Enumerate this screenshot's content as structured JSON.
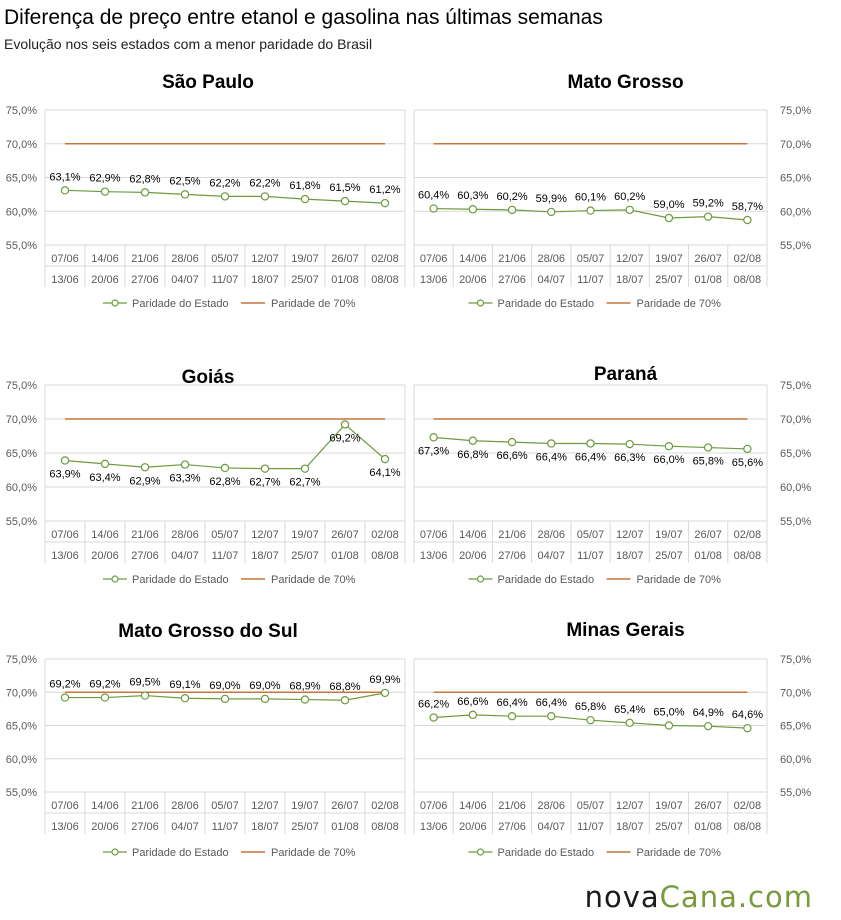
{
  "header": {
    "title": "Diferença de preço entre etanol e gasolina nas últimas semanas",
    "subtitle": "Evolução nos seis estados com a menor paridade do Brasil"
  },
  "brand": {
    "part1": "nova",
    "part2": "Cana",
    "part3": ".com"
  },
  "colors": {
    "series": "#6e9a3e",
    "threshold": "#c8743a",
    "grid": "#d9d9d9",
    "axis_text": "#595959"
  },
  "legend": {
    "series": "Paridade do Estado",
    "threshold": "Paridade de 70%"
  },
  "chart_data": [
    {
      "type": "line",
      "title": "São Paulo",
      "yaxis_side": "left",
      "categories": [
        "07/06 13/06",
        "14/06 20/06",
        "21/06 27/06",
        "28/06 04/07",
        "05/07 11/07",
        "12/07 18/07",
        "19/07 25/07",
        "26/07 01/08",
        "02/08 08/08"
      ],
      "cat_top": [
        "07/06",
        "14/06",
        "21/06",
        "28/06",
        "05/07",
        "12/07",
        "19/07",
        "26/07",
        "02/08"
      ],
      "cat_bottom": [
        "13/06",
        "20/06",
        "27/06",
        "04/07",
        "11/07",
        "18/07",
        "25/07",
        "01/08",
        "08/08"
      ],
      "series": [
        {
          "name": "Paridade do Estado",
          "values": [
            63.1,
            62.9,
            62.8,
            62.5,
            62.2,
            62.2,
            61.8,
            61.5,
            61.2
          ],
          "labels": [
            "63,1%",
            "62,9%",
            "62,8%",
            "62,5%",
            "62,2%",
            "62,2%",
            "61,8%",
            "61,5%",
            "61,2%"
          ]
        },
        {
          "name": "Paridade de 70%",
          "values": [
            70,
            70,
            70,
            70,
            70,
            70,
            70,
            70,
            70
          ]
        }
      ],
      "ylim": [
        55,
        75
      ],
      "yticks": [
        "55,0%",
        "60,0%",
        "65,0%",
        "70,0%",
        "75,0%"
      ],
      "label_pos": "above"
    },
    {
      "type": "line",
      "title": "Mato Grosso",
      "yaxis_side": "right",
      "cat_top": [
        "07/06",
        "14/06",
        "21/06",
        "28/06",
        "05/07",
        "12/07",
        "19/07",
        "26/07",
        "02/08"
      ],
      "cat_bottom": [
        "13/06",
        "20/06",
        "27/06",
        "04/07",
        "11/07",
        "18/07",
        "25/07",
        "01/08",
        "08/08"
      ],
      "series": [
        {
          "name": "Paridade do Estado",
          "values": [
            60.4,
            60.3,
            60.2,
            59.9,
            60.1,
            60.2,
            59.0,
            59.2,
            58.7
          ],
          "labels": [
            "60,4%",
            "60,3%",
            "60,2%",
            "59,9%",
            "60,1%",
            "60,2%",
            "59,0%",
            "59,2%",
            "58,7%"
          ]
        },
        {
          "name": "Paridade de 70%",
          "values": [
            70,
            70,
            70,
            70,
            70,
            70,
            70,
            70,
            70
          ]
        }
      ],
      "ylim": [
        55,
        75
      ],
      "yticks": [
        "55,0%",
        "60,0%",
        "65,0%",
        "70,0%",
        "75,0%"
      ],
      "label_pos": "above"
    },
    {
      "type": "line",
      "title": "Goiás",
      "yaxis_side": "left",
      "cat_top": [
        "07/06",
        "14/06",
        "21/06",
        "28/06",
        "05/07",
        "12/07",
        "19/07",
        "26/07",
        "02/08"
      ],
      "cat_bottom": [
        "13/06",
        "20/06",
        "27/06",
        "04/07",
        "11/07",
        "18/07",
        "25/07",
        "01/08",
        "08/08"
      ],
      "series": [
        {
          "name": "Paridade do Estado",
          "values": [
            63.9,
            63.4,
            62.9,
            63.3,
            62.8,
            62.7,
            62.7,
            69.2,
            64.1
          ],
          "labels": [
            "63,9%",
            "63,4%",
            "62,9%",
            "63,3%",
            "62,8%",
            "62,7%",
            "62,7%",
            "69,2%",
            "64,1%"
          ]
        },
        {
          "name": "Paridade de 70%",
          "values": [
            70,
            70,
            70,
            70,
            70,
            70,
            70,
            70,
            70
          ]
        }
      ],
      "ylim": [
        55,
        75
      ],
      "yticks": [
        "55,0%",
        "60,0%",
        "65,0%",
        "70,0%",
        "75,0%"
      ],
      "label_pos": "below"
    },
    {
      "type": "line",
      "title": "Paraná",
      "yaxis_side": "right",
      "cat_top": [
        "07/06",
        "14/06",
        "21/06",
        "28/06",
        "05/07",
        "12/07",
        "19/07",
        "26/07",
        "02/08"
      ],
      "cat_bottom": [
        "13/06",
        "20/06",
        "27/06",
        "04/07",
        "11/07",
        "18/07",
        "25/07",
        "01/08",
        "08/08"
      ],
      "series": [
        {
          "name": "Paridade do Estado",
          "values": [
            67.3,
            66.8,
            66.6,
            66.4,
            66.4,
            66.3,
            66.0,
            65.8,
            65.6
          ],
          "labels": [
            "67,3%",
            "66,8%",
            "66,6%",
            "66,4%",
            "66,4%",
            "66,3%",
            "66,0%",
            "65,8%",
            "65,6%"
          ]
        },
        {
          "name": "Paridade de 70%",
          "values": [
            70,
            70,
            70,
            70,
            70,
            70,
            70,
            70,
            70
          ]
        }
      ],
      "ylim": [
        55,
        75
      ],
      "yticks": [
        "55,0%",
        "60,0%",
        "65,0%",
        "70,0%",
        "75,0%"
      ],
      "label_pos": "below"
    },
    {
      "type": "line",
      "title": "Mato Grosso do Sul",
      "yaxis_side": "left",
      "cat_top": [
        "07/06",
        "14/06",
        "21/06",
        "28/06",
        "05/07",
        "12/07",
        "19/07",
        "26/07",
        "02/08"
      ],
      "cat_bottom": [
        "13/06",
        "20/06",
        "27/06",
        "04/07",
        "11/07",
        "18/07",
        "25/07",
        "01/08",
        "08/08"
      ],
      "series": [
        {
          "name": "Paridade do Estado",
          "values": [
            69.2,
            69.2,
            69.5,
            69.1,
            69.0,
            69.0,
            68.9,
            68.8,
            69.9
          ],
          "labels": [
            "69,2%",
            "69,2%",
            "69,5%",
            "69,1%",
            "69,0%",
            "69,0%",
            "68,9%",
            "68,8%",
            "69,9%"
          ]
        },
        {
          "name": "Paridade de 70%",
          "values": [
            70,
            70,
            70,
            70,
            70,
            70,
            70,
            70,
            70
          ]
        }
      ],
      "ylim": [
        55,
        75
      ],
      "yticks": [
        "55,0%",
        "60,0%",
        "65,0%",
        "70,0%",
        "75,0%"
      ],
      "label_pos": "above"
    },
    {
      "type": "line",
      "title": "Minas Gerais",
      "yaxis_side": "right",
      "cat_top": [
        "07/06",
        "14/06",
        "21/06",
        "28/06",
        "05/07",
        "12/07",
        "19/07",
        "26/07",
        "02/08"
      ],
      "cat_bottom": [
        "13/06",
        "20/06",
        "27/06",
        "04/07",
        "11/07",
        "18/07",
        "25/07",
        "01/08",
        "08/08"
      ],
      "series": [
        {
          "name": "Paridade do Estado",
          "values": [
            66.2,
            66.6,
            66.4,
            66.4,
            65.8,
            65.4,
            65.0,
            64.9,
            64.6
          ],
          "labels": [
            "66,2%",
            "66,6%",
            "66,4%",
            "66,4%",
            "65,8%",
            "65,4%",
            "65,0%",
            "64,9%",
            "64,6%"
          ]
        },
        {
          "name": "Paridade de 70%",
          "values": [
            70,
            70,
            70,
            70,
            70,
            70,
            70,
            70,
            70
          ]
        }
      ],
      "ylim": [
        55,
        75
      ],
      "yticks": [
        "55,0%",
        "60,0%",
        "65,0%",
        "70,0%",
        "75,0%"
      ],
      "label_pos": "above"
    }
  ]
}
